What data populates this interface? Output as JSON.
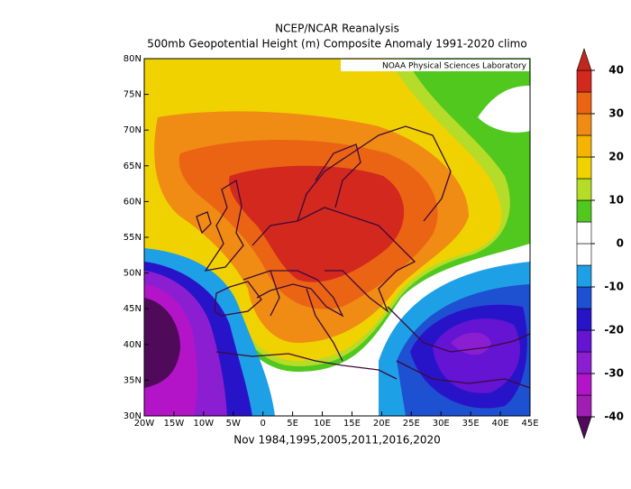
{
  "title": "NCEP/NCAR Reanalysis",
  "subtitle": "500mb Geopotential Height (m) Composite Anomaly 1991-2020 climo",
  "credit": "NOAA Physical Sciences Laboratory",
  "footer": "Nov 1984,1995,2005,2011,2016,2020",
  "map": {
    "xlim": [
      -20,
      45
    ],
    "ylim": [
      30,
      80
    ],
    "xticks": [
      {
        "value": -20,
        "label": "20W"
      },
      {
        "value": -15,
        "label": "15W"
      },
      {
        "value": -10,
        "label": "10W"
      },
      {
        "value": -5,
        "label": "5W"
      },
      0,
      {
        "value": 5,
        "label": "5E"
      },
      {
        "value": 10,
        "label": "10E"
      },
      {
        "value": 15,
        "label": "15E"
      },
      {
        "value": 20,
        "label": "20E"
      },
      {
        "value": 25,
        "label": "25E"
      },
      {
        "value": 30,
        "label": "30E"
      },
      {
        "value": 35,
        "label": "35E"
      },
      {
        "value": 40,
        "label": "40E"
      },
      {
        "value": 45,
        "label": "45E"
      }
    ],
    "yticks": [
      {
        "value": 30,
        "label": "30N"
      },
      {
        "value": 35,
        "label": "35N"
      },
      {
        "value": 40,
        "label": "40N"
      },
      {
        "value": 45,
        "label": "45N"
      },
      {
        "value": 50,
        "label": "50N"
      },
      {
        "value": 55,
        "label": "55N"
      },
      {
        "value": 60,
        "label": "60N"
      },
      {
        "value": 65,
        "label": "65N"
      },
      {
        "value": 70,
        "label": "70N"
      },
      {
        "value": 75,
        "label": "75N"
      },
      {
        "value": 80,
        "label": "80N"
      }
    ]
  },
  "colorbar": {
    "ticks": [
      -40,
      -30,
      -20,
      -10,
      0,
      10,
      20,
      30,
      40
    ],
    "colors": [
      "#a01eb4",
      "#b414c8",
      "#8c1ed2",
      "#6414d2",
      "#2814c8",
      "#1e50d2",
      "#1ea0e6",
      "#ffffff",
      "#ffffff",
      "#50c81e",
      "#b4dc28",
      "#f0d200",
      "#f5b400",
      "#f08c14",
      "#eb6414",
      "#d2281e"
    ],
    "under": "#500a5a",
    "over": "#c0281e"
  }
}
